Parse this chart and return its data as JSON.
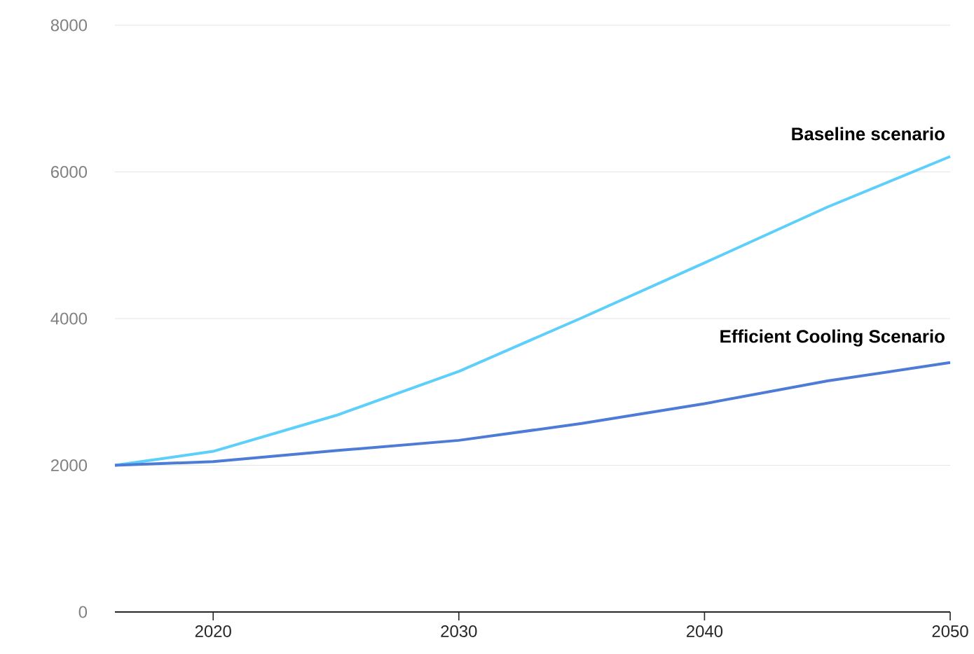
{
  "chart_data": {
    "type": "line",
    "x": [
      2016,
      2020,
      2025,
      2030,
      2035,
      2040,
      2045,
      2050
    ],
    "series": [
      {
        "name": "Baseline scenario",
        "color": "#5ccffa",
        "values": [
          2000,
          2190,
          2680,
          3280,
          4010,
          4760,
          5520,
          6210
        ]
      },
      {
        "name": "Efficient Cooling Scenario",
        "color": "#4d7bd6",
        "values": [
          2000,
          2050,
          2200,
          2340,
          2570,
          2840,
          3150,
          3400
        ]
      }
    ],
    "xlim": [
      2016,
      2050
    ],
    "xticks": [
      2020,
      2030,
      2040,
      2050
    ],
    "ylim": [
      0,
      8000
    ],
    "yticks": [
      0,
      2000,
      4000,
      6000,
      8000
    ],
    "grid": "y",
    "marker": "none",
    "line_style": "solid"
  }
}
